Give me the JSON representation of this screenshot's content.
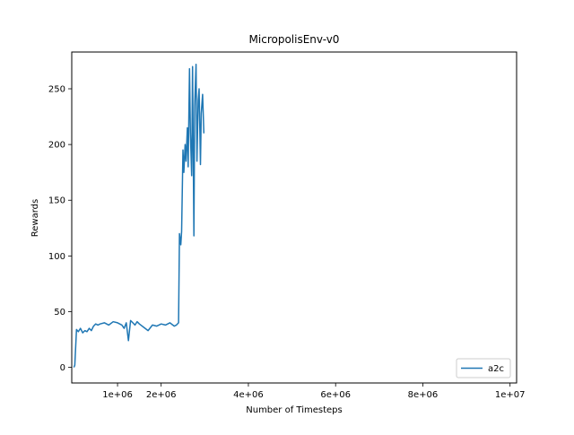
{
  "chart_data": {
    "type": "line",
    "title": "MicropolisEnv-v0",
    "xlabel": "Number of Timesteps",
    "ylabel": "Rewards",
    "xlim": [
      -50000,
      10150000
    ],
    "ylim": [
      -14,
      283
    ],
    "grid": false,
    "legend_position": "lower-right",
    "x_ticks": [
      {
        "value": 1000000,
        "label": "1e+06"
      },
      {
        "value": 2000000,
        "label": "2e+06"
      },
      {
        "value": 4000000,
        "label": "4e+06"
      },
      {
        "value": 6000000,
        "label": "6e+06"
      },
      {
        "value": 8000000,
        "label": "8e+06"
      },
      {
        "value": 10000000,
        "label": "1e+07"
      }
    ],
    "y_ticks": [
      {
        "value": 0,
        "label": "0"
      },
      {
        "value": 50,
        "label": "50"
      },
      {
        "value": 100,
        "label": "100"
      },
      {
        "value": 150,
        "label": "150"
      },
      {
        "value": 200,
        "label": "200"
      },
      {
        "value": 250,
        "label": "250"
      }
    ],
    "series": [
      {
        "name": "a2c",
        "color": "#1f77b4",
        "x": [
          0,
          20000,
          60000,
          100000,
          150000,
          200000,
          250000,
          300000,
          350000,
          400000,
          450000,
          500000,
          550000,
          600000,
          700000,
          800000,
          900000,
          1000000,
          1100000,
          1150000,
          1200000,
          1250000,
          1300000,
          1350000,
          1400000,
          1450000,
          1500000,
          1600000,
          1700000,
          1800000,
          1900000,
          2000000,
          2100000,
          2200000,
          2300000,
          2350000,
          2400000,
          2420000,
          2450000,
          2470000,
          2500000,
          2520000,
          2550000,
          2570000,
          2600000,
          2620000,
          2650000,
          2670000,
          2700000,
          2720000,
          2750000,
          2770000,
          2800000,
          2820000,
          2850000,
          2870000,
          2900000,
          2920000,
          2950000,
          2980000
        ],
        "values": [
          0,
          2,
          34,
          32,
          35,
          31,
          33,
          32,
          35,
          33,
          37,
          39,
          38,
          39,
          40,
          38,
          41,
          40,
          38,
          35,
          40,
          24,
          42,
          40,
          38,
          41,
          39,
          36,
          33,
          38,
          37,
          39,
          38,
          40,
          37,
          38,
          40,
          120,
          110,
          122,
          195,
          175,
          200,
          185,
          215,
          180,
          268,
          210,
          172,
          270,
          118,
          235,
          272,
          185,
          240,
          250,
          182,
          228,
          245,
          210
        ]
      }
    ]
  }
}
